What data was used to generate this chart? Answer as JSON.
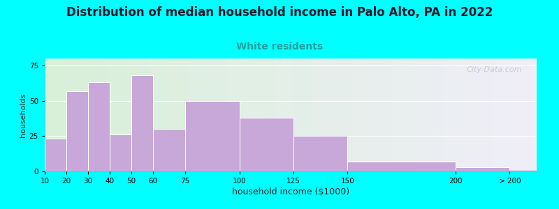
{
  "title": "Distribution of median household income in Palo Alto, PA in 2022",
  "subtitle": "White residents",
  "xlabel": "household income ($1000)",
  "ylabel": "households",
  "background_outer": "#00FFFF",
  "bar_color": "#C8A8D8",
  "bar_edge_color": "#ffffff",
  "title_fontsize": 12,
  "subtitle_fontsize": 10,
  "subtitle_color": "#20a0a0",
  "ylabel_fontsize": 8,
  "xlabel_fontsize": 9,
  "bar_positions": [
    15,
    25,
    35,
    45,
    55,
    67.5,
    87.5,
    112.5,
    137.5,
    175,
    212.5
  ],
  "bar_widths": [
    10,
    10,
    10,
    10,
    10,
    15,
    25,
    25,
    25,
    50,
    25
  ],
  "bar_heights": [
    23,
    57,
    63,
    26,
    68,
    30,
    50,
    38,
    25,
    7,
    3
  ],
  "xtick_positions": [
    10,
    20,
    30,
    40,
    50,
    60,
    75,
    100,
    125,
    150,
    200,
    225
  ],
  "xtick_labels": [
    "10",
    "20",
    "30",
    "40",
    "50",
    "60",
    "75",
    "100",
    "125",
    "150",
    "200",
    "> 200"
  ],
  "ylim": [
    0,
    80
  ],
  "yticks": [
    0,
    25,
    50,
    75
  ],
  "xlim": [
    10,
    237.5
  ],
  "watermark": "City-Data.com"
}
